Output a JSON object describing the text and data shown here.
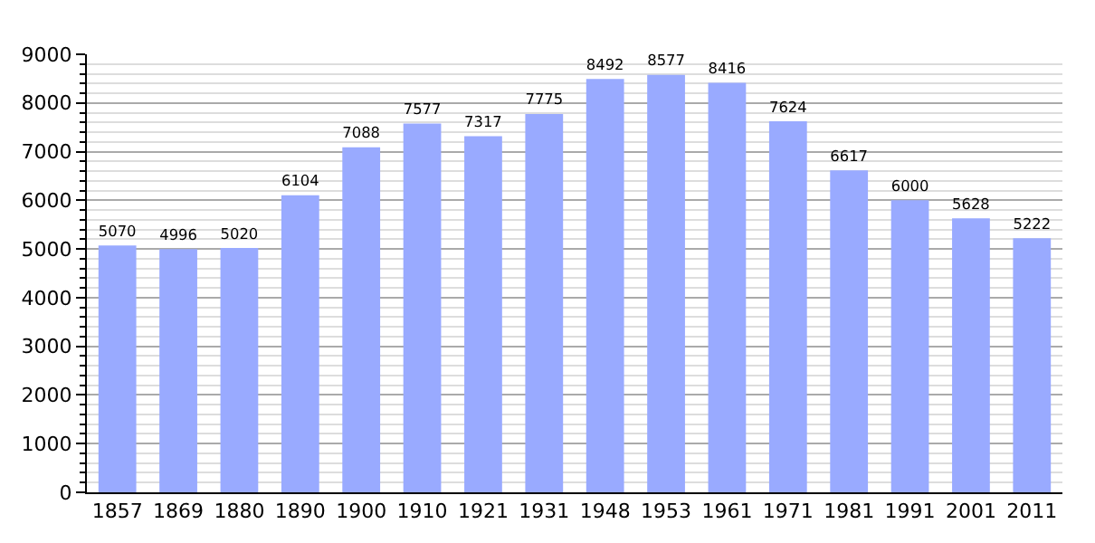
{
  "chart_data": {
    "type": "bar",
    "categories": [
      "1857",
      "1869",
      "1880",
      "1890",
      "1900",
      "1910",
      "1921",
      "1931",
      "1948",
      "1953",
      "1961",
      "1971",
      "1981",
      "1991",
      "2001",
      "2011"
    ],
    "values": [
      5070,
      4996,
      5020,
      6104,
      7088,
      7577,
      7317,
      7775,
      8492,
      8577,
      8416,
      7624,
      6617,
      6000,
      5628,
      5222
    ],
    "color": "#99aaff",
    "ylim": [
      0,
      9000
    ],
    "yticks": [
      0,
      1000,
      2000,
      3000,
      4000,
      5000,
      6000,
      7000,
      8000,
      9000
    ],
    "grid": "y",
    "data_labels": true,
    "legend": false
  }
}
